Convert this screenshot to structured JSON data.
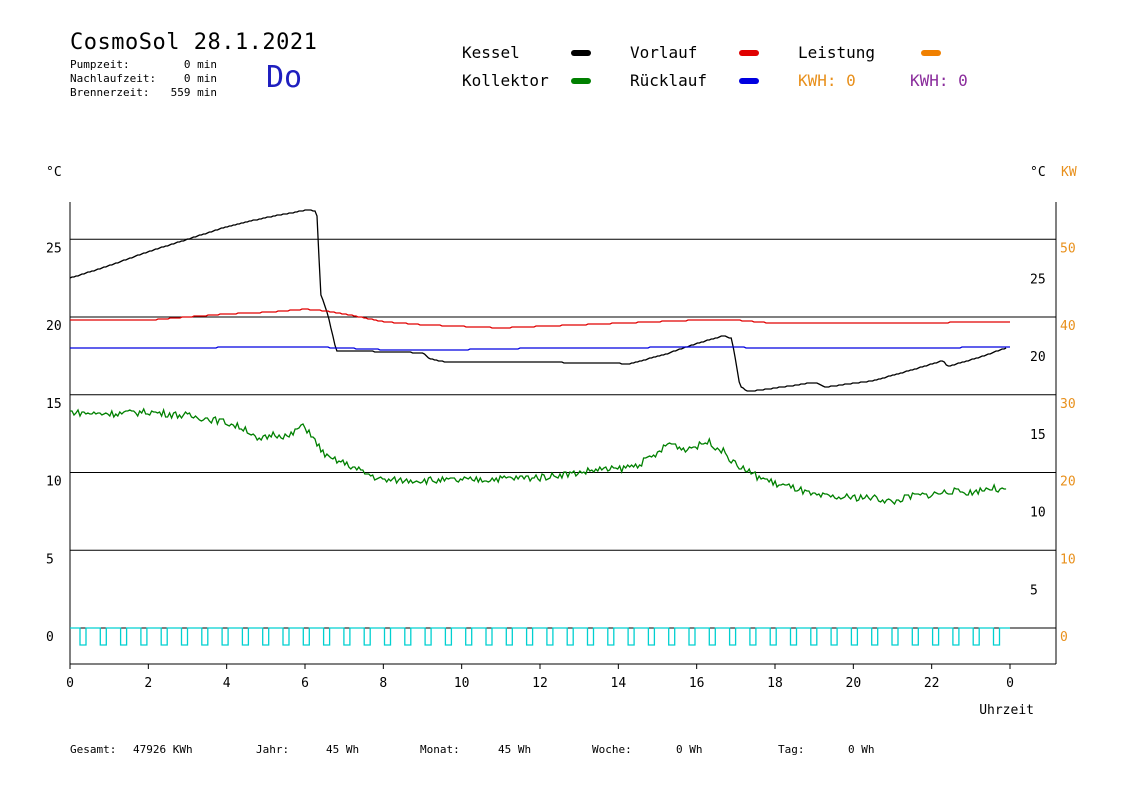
{
  "header": {
    "title": "CosmoSol 28.1.2021",
    "day": "Do",
    "stats": [
      {
        "label": "Pumpzeit:",
        "value": "0 min"
      },
      {
        "label": "Nachlaufzeit:",
        "value": "0 min"
      },
      {
        "label": "Brennerzeit:",
        "value": "559 min"
      }
    ]
  },
  "legend": {
    "items": [
      {
        "label": "Kessel",
        "color": "#000000"
      },
      {
        "label": "Kollektor",
        "color": "#008000"
      },
      {
        "label": "Vorlauf",
        "color": "#e00000"
      },
      {
        "label": "Rücklauf",
        "color": "#0000e0"
      },
      {
        "label": "Leistung",
        "color": "#f08000"
      }
    ],
    "kwh_orange": "KWH: 0",
    "kwh_purple": "KWH: 0",
    "kwh_orange_color": "#e8901c",
    "kwh_purple_color": "#8a2c9c"
  },
  "chart_data": {
    "type": "line",
    "xlabel": "Uhrzeit",
    "x_ticks": [
      "0",
      "2",
      "4",
      "6",
      "8",
      "10",
      "12",
      "14",
      "16",
      "18",
      "20",
      "22",
      "0"
    ],
    "xlim": [
      0,
      24
    ],
    "ylabel_left": "°C",
    "ylabel_right": "°C",
    "ylabel_right2": "KW",
    "left_ticks": [
      0,
      5,
      10,
      15,
      20,
      25
    ],
    "ylim_left": [
      -2,
      27.5
    ],
    "right_ticks": [
      5,
      10,
      15,
      20,
      25
    ],
    "right_kw_ticks": [
      0,
      10,
      20,
      30,
      40,
      50
    ],
    "grid": "horizontal",
    "series": [
      {
        "name": "Kessel",
        "color": "#000000",
        "points": [
          [
            0,
            22.5
          ],
          [
            1,
            23.3
          ],
          [
            2,
            24.2
          ],
          [
            3,
            25.0
          ],
          [
            4,
            25.8
          ],
          [
            5,
            26.4
          ],
          [
            6.1,
            26.9
          ],
          [
            6.3,
            26.8
          ],
          [
            6.4,
            21.5
          ],
          [
            6.6,
            20.0
          ],
          [
            6.8,
            17.8
          ],
          [
            7.5,
            17.8
          ],
          [
            9,
            17.7
          ],
          [
            9.2,
            17.3
          ],
          [
            9.6,
            17.1
          ],
          [
            12,
            17.1
          ],
          [
            14.3,
            17.0
          ],
          [
            15.2,
            17.6
          ],
          [
            16,
            18.3
          ],
          [
            16.7,
            18.8
          ],
          [
            16.9,
            18.6
          ],
          [
            17.1,
            15.6
          ],
          [
            17.3,
            15.2
          ],
          [
            18.5,
            15.6
          ],
          [
            19,
            15.8
          ],
          [
            19.3,
            15.5
          ],
          [
            20.5,
            15.9
          ],
          [
            21.5,
            16.6
          ],
          [
            22.3,
            17.2
          ],
          [
            22.4,
            16.8
          ],
          [
            23.2,
            17.4
          ],
          [
            23.9,
            18.0
          ]
        ]
      },
      {
        "name": "Vorlauf",
        "color": "#e00000",
        "points": [
          [
            0,
            19.8
          ],
          [
            2,
            19.8
          ],
          [
            3,
            20.0
          ],
          [
            4,
            20.2
          ],
          [
            5,
            20.3
          ],
          [
            6,
            20.5
          ],
          [
            6.5,
            20.4
          ],
          [
            7,
            20.2
          ],
          [
            8,
            19.7
          ],
          [
            9,
            19.5
          ],
          [
            10,
            19.4
          ],
          [
            11,
            19.3
          ],
          [
            12,
            19.4
          ],
          [
            13,
            19.5
          ],
          [
            14,
            19.6
          ],
          [
            15,
            19.7
          ],
          [
            16,
            19.8
          ],
          [
            17,
            19.8
          ],
          [
            18,
            19.6
          ],
          [
            19,
            19.6
          ],
          [
            20,
            19.6
          ],
          [
            21,
            19.6
          ],
          [
            22,
            19.6
          ],
          [
            23,
            19.7
          ],
          [
            24,
            19.7
          ]
        ]
      },
      {
        "name": "Rücklauf",
        "color": "#0000e0",
        "points": [
          [
            0,
            18.0
          ],
          [
            3,
            18.0
          ],
          [
            5,
            18.1
          ],
          [
            6,
            18.1
          ],
          [
            7,
            18.0
          ],
          [
            8,
            17.9
          ],
          [
            10,
            17.9
          ],
          [
            12,
            18.0
          ],
          [
            14,
            18.0
          ],
          [
            16,
            18.1
          ],
          [
            18,
            18.0
          ],
          [
            20,
            18.0
          ],
          [
            22,
            18.0
          ],
          [
            24,
            18.1
          ]
        ]
      },
      {
        "name": "Kollektor",
        "color": "#008000",
        "points": [
          [
            0,
            13.9
          ],
          [
            0.5,
            13.8
          ],
          [
            1,
            13.8
          ],
          [
            2,
            13.9
          ],
          [
            2.8,
            13.7
          ],
          [
            3.5,
            13.5
          ],
          [
            4,
            13.2
          ],
          [
            4.5,
            12.8
          ],
          [
            4.8,
            12.0
          ],
          [
            5.2,
            12.5
          ],
          [
            5.6,
            12.3
          ],
          [
            5.9,
            13.0
          ],
          [
            6.1,
            12.7
          ],
          [
            6.3,
            11.8
          ],
          [
            6.6,
            10.9
          ],
          [
            7,
            10.6
          ],
          [
            7.5,
            10.0
          ],
          [
            8,
            9.5
          ],
          [
            9,
            9.5
          ],
          [
            10,
            9.5
          ],
          [
            11,
            9.6
          ],
          [
            12,
            9.7
          ],
          [
            13,
            10.0
          ],
          [
            13.5,
            10.2
          ],
          [
            14,
            10.2
          ],
          [
            14.5,
            10.5
          ],
          [
            15,
            11.2
          ],
          [
            15.3,
            11.9
          ],
          [
            15.7,
            11.5
          ],
          [
            16,
            11.7
          ],
          [
            16.3,
            12.0
          ],
          [
            16.7,
            11.3
          ],
          [
            17,
            10.5
          ],
          [
            17.5,
            9.8
          ],
          [
            18,
            9.3
          ],
          [
            18.5,
            9.0
          ],
          [
            19,
            8.5
          ],
          [
            19.5,
            8.4
          ],
          [
            20,
            8.4
          ],
          [
            20.5,
            8.4
          ],
          [
            21,
            8.1
          ],
          [
            21.5,
            8.5
          ],
          [
            22,
            8.6
          ],
          [
            22.5,
            8.8
          ],
          [
            23,
            8.7
          ],
          [
            23.5,
            9.0
          ],
          [
            23.9,
            8.8
          ]
        ]
      },
      {
        "name": "Leistung",
        "color": "#00d0d0",
        "points": [
          [
            0,
            -0.1
          ],
          [
            24,
            -0.1
          ]
        ]
      }
    ]
  },
  "footer": {
    "gesamt_label": "Gesamt:",
    "gesamt_value": "47926 KWh",
    "jahr_label": "Jahr:",
    "jahr_value": "45 Wh",
    "monat_label": "Monat:",
    "monat_value": "45 Wh",
    "woche_label": "Woche:",
    "woche_value": "0 Wh",
    "tag_label": "Tag:",
    "tag_value": "0 Wh"
  }
}
